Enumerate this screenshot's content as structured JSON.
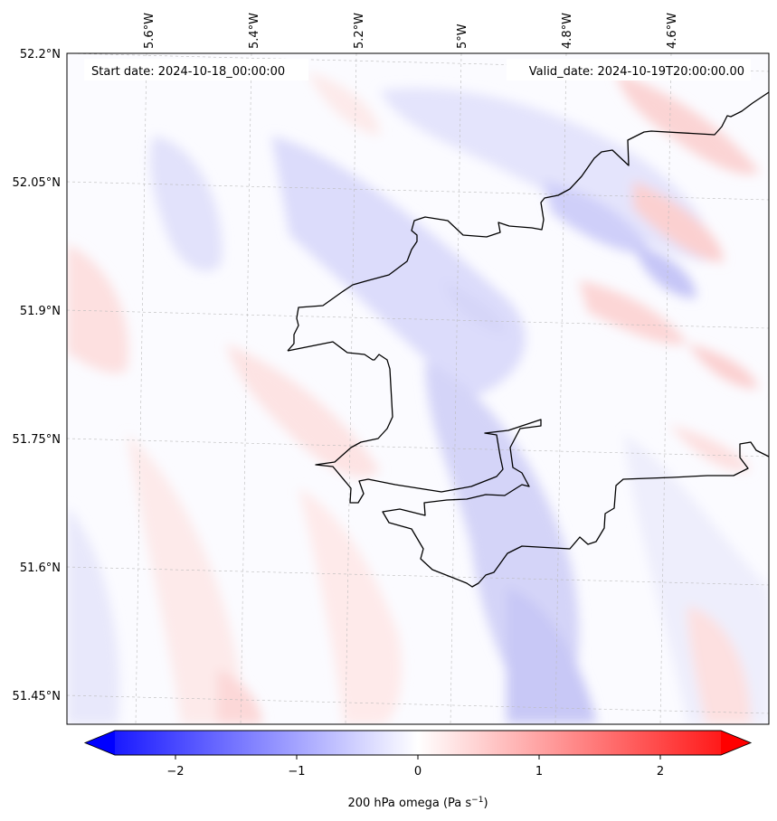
{
  "header": {
    "start_date": "Start date: 2024-10-18_00:00:00",
    "valid_date": "Valid_date: 2024-10-19T20:00:00.00"
  },
  "map": {
    "lon_labels": [
      "5.6°W",
      "5.4°W",
      "5.2°W",
      "5°W",
      "4.8°W",
      "4.6°W"
    ],
    "lat_labels": [
      "52.2°N",
      "52.05°N",
      "51.9°N",
      "51.75°N",
      "51.6°N",
      "51.45°N"
    ],
    "gridlines": "dashed",
    "field": "200 hPa omega",
    "colors": {
      "negative": "#0000ff",
      "neutral": "#ffffff",
      "positive": "#ff0000",
      "coastline": "#000000"
    }
  },
  "colorbar": {
    "ticks": [
      "−2",
      "−1",
      "0",
      "1",
      "2"
    ],
    "tick_values": [
      -2,
      -1,
      0,
      1,
      2
    ],
    "range": [
      -2.5,
      2.5
    ],
    "extend": "both",
    "label_main": "200 hPa omega (Pa s",
    "label_sup": "−1",
    "label_end": ")"
  }
}
